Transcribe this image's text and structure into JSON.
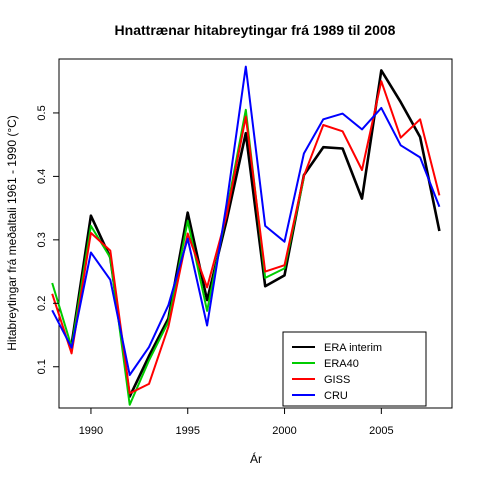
{
  "chart_data": {
    "type": "line",
    "title": "Hnattrænar hitabreytingar frá 1989 til 2008",
    "xlabel": "Ár",
    "ylabel": "Hitabreytingar frá meðaltali 1961 - 1990 (°C)",
    "xlim": [
      1988.35,
      2008.65
    ],
    "ylim": [
      0.035,
      0.585
    ],
    "x_ticks": [
      1990,
      1995,
      2000,
      2005
    ],
    "y_ticks": [
      0.1,
      0.2,
      0.3,
      0.4,
      0.5
    ],
    "legend_position": "bottom-right",
    "grid": false,
    "series": [
      {
        "name": "ERA interim",
        "color": "#000000",
        "x": [
          1989,
          1990,
          1991,
          1992,
          1993,
          1994,
          1995,
          1996,
          1997,
          1998,
          1999,
          2000,
          2001,
          2002,
          2003,
          2004,
          2005,
          2006,
          2007,
          2008
        ],
        "values": [
          0.135,
          0.338,
          0.272,
          0.053,
          0.117,
          0.176,
          0.343,
          0.205,
          0.33,
          0.468,
          0.227,
          0.244,
          0.402,
          0.446,
          0.444,
          0.365,
          0.567,
          0.517,
          0.462,
          0.314
        ]
      },
      {
        "name": "ERA40",
        "color": "#00cc00",
        "x": [
          1988,
          1989,
          1990,
          1991,
          1992,
          1993,
          1994,
          1995,
          1996,
          1997,
          1998,
          1999,
          2000,
          2001
        ],
        "values": [
          0.232,
          0.131,
          0.322,
          0.272,
          0.04,
          0.11,
          0.171,
          0.33,
          0.188,
          0.344,
          0.505,
          0.24,
          0.255,
          0.398
        ]
      },
      {
        "name": "GISS",
        "color": "#ff0000",
        "x": [
          1988,
          1989,
          1990,
          1991,
          1992,
          1993,
          1994,
          1995,
          1996,
          1997,
          1998,
          1999,
          2000,
          2001,
          2002,
          2003,
          2004,
          2005,
          2006,
          2007,
          2008
        ],
        "values": [
          0.215,
          0.121,
          0.311,
          0.283,
          0.058,
          0.073,
          0.163,
          0.31,
          0.225,
          0.338,
          0.494,
          0.25,
          0.26,
          0.401,
          0.481,
          0.471,
          0.41,
          0.55,
          0.461,
          0.49,
          0.37
        ]
      },
      {
        "name": "CRU",
        "color": "#0000ff",
        "x": [
          1988,
          1989,
          1990,
          1991,
          1992,
          1993,
          1994,
          1995,
          1996,
          1997,
          1998,
          1999,
          2000,
          2001,
          2002,
          2003,
          2004,
          2005,
          2006,
          2007,
          2008
        ],
        "values": [
          0.189,
          0.13,
          0.28,
          0.237,
          0.087,
          0.131,
          0.197,
          0.302,
          0.165,
          0.356,
          0.573,
          0.322,
          0.297,
          0.436,
          0.49,
          0.499,
          0.474,
          0.508,
          0.449,
          0.43,
          0.352
        ]
      }
    ]
  }
}
